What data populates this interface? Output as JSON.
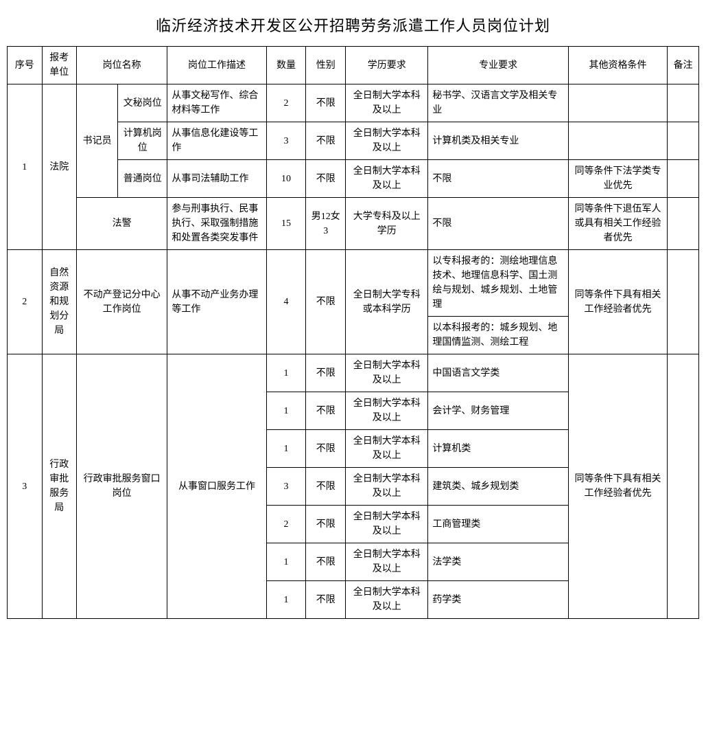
{
  "title": "临沂经济技术开发区公开招聘劳务派遣工作人员岗位计划",
  "headers": {
    "seq": "序号",
    "unit": "报考单位",
    "position": "岗位名称",
    "desc": "岗位工作描述",
    "qty": "数量",
    "gender": "性别",
    "edu": "学历要求",
    "major": "专业要求",
    "other": "其他资格条件",
    "note": "备注"
  },
  "groups": [
    {
      "seq": "1",
      "unit": "法院",
      "subgroup": "书记员",
      "rows": [
        {
          "posName": "文秘岗位",
          "desc": "从事文秘写作、综合材料等工作",
          "qty": "2",
          "gender": "不限",
          "edu": "全日制大学本科及以上",
          "major": "秘书学、汉语言文学及相关专业",
          "other": "",
          "note": ""
        },
        {
          "posName": "计算机岗位",
          "desc": "从事信息化建设等工作",
          "qty": "3",
          "gender": "不限",
          "edu": "全日制大学本科及以上",
          "major": "计算机类及相关专业",
          "other": "",
          "note": ""
        },
        {
          "posName": "普通岗位",
          "desc": "从事司法辅助工作",
          "qty": "10",
          "gender": "不限",
          "edu": "全日制大学本科及以上",
          "major": "不限",
          "other": "同等条件下法学类专业优先",
          "note": ""
        }
      ],
      "extraRow": {
        "posName": "法警",
        "desc": "参与刑事执行、民事执行、采取强制措施和处置各类突发事件",
        "qty": "15",
        "gender": "男12女3",
        "edu": "大学专科及以上学历",
        "major": "不限",
        "other": "同等条件下退伍军人或具有相关工作经验者优先",
        "note": ""
      }
    },
    {
      "seq": "2",
      "unit": "自然资源和规划分局",
      "posName": "不动产登记分中心工作岗位",
      "desc": "从事不动产业务办理等工作",
      "qty": "4",
      "gender": "不限",
      "edu": "全日制大学专科或本科学历",
      "major1": "以专科报考的：测绘地理信息技术、地理信息科学、国土测绘与规划、城乡规划、土地管理",
      "major2": "以本科报考的：城乡规划、地理国情监测、测绘工程",
      "other": "同等条件下具有相关工作经验者优先",
      "note": ""
    },
    {
      "seq": "3",
      "unit": "行政审批服务局",
      "posName": "行政审批服务窗口岗位",
      "desc": "从事窗口服务工作",
      "other": "同等条件下具有相关工作经验者优先",
      "rows": [
        {
          "qty": "1",
          "gender": "不限",
          "edu": "全日制大学本科及以上",
          "major": "中国语言文学类"
        },
        {
          "qty": "1",
          "gender": "不限",
          "edu": "全日制大学本科及以上",
          "major": "会计学、财务管理"
        },
        {
          "qty": "1",
          "gender": "不限",
          "edu": "全日制大学本科及以上",
          "major": "计算机类"
        },
        {
          "qty": "3",
          "gender": "不限",
          "edu": "全日制大学本科及以上",
          "major": "建筑类、城乡规划类"
        },
        {
          "qty": "2",
          "gender": "不限",
          "edu": "全日制大学本科及以上",
          "major": "工商管理类"
        },
        {
          "qty": "1",
          "gender": "不限",
          "edu": "全日制大学本科及以上",
          "major": "法学类"
        },
        {
          "qty": "1",
          "gender": "不限",
          "edu": "全日制大学本科及以上",
          "major": "药学类"
        }
      ]
    }
  ]
}
